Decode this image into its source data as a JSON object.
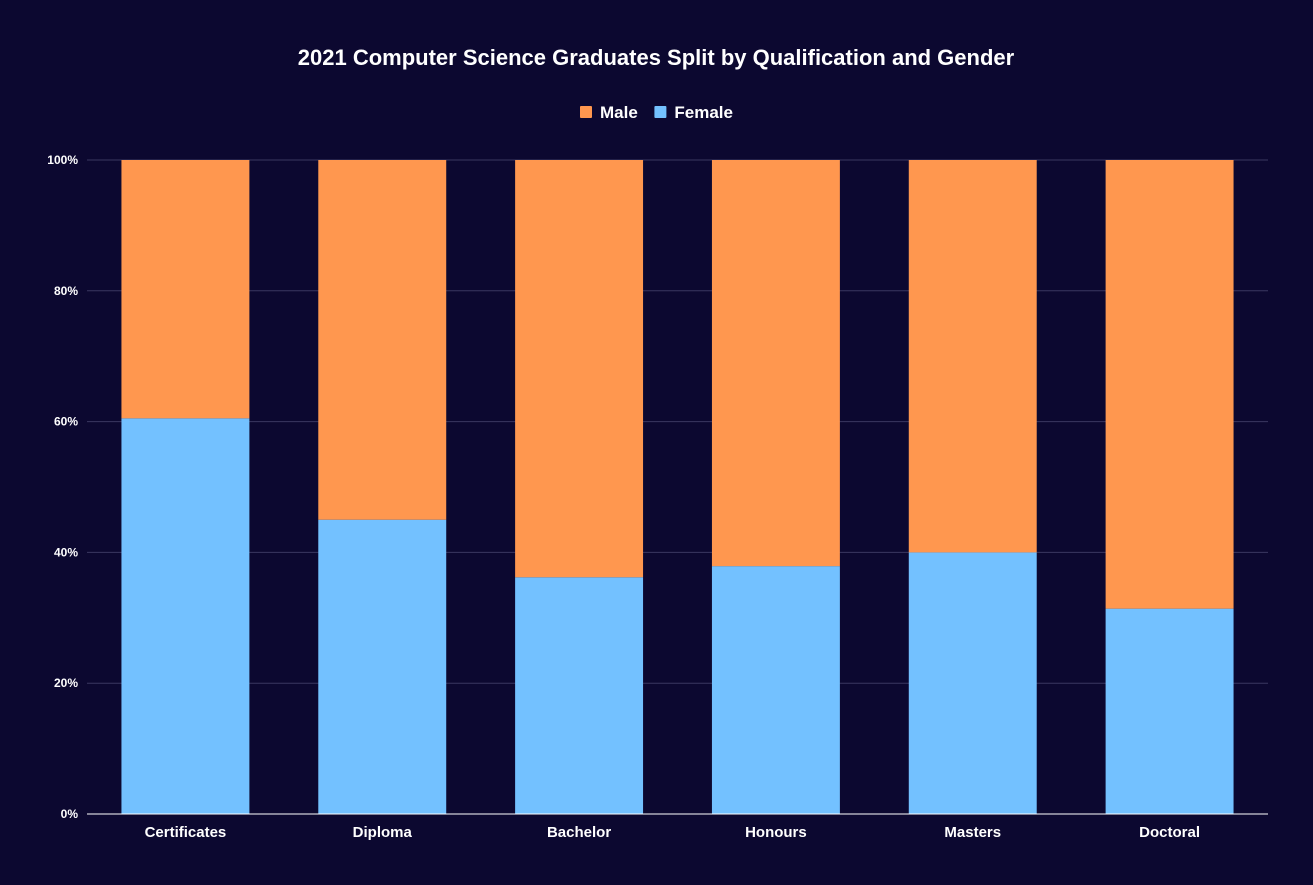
{
  "chart_data": {
    "type": "bar",
    "stacked": "percent",
    "title": "2021 Computer Science Graduates Split by Qualification and Gender",
    "xlabel": "",
    "ylabel": "",
    "categories": [
      "Certificates",
      "Diploma",
      "Bachelor",
      "Honours",
      "Masters",
      "Doctoral"
    ],
    "series": [
      {
        "name": "Female",
        "values": [
          60.5,
          45.0,
          36.2,
          37.9,
          40.0,
          31.4
        ]
      },
      {
        "name": "Male",
        "values": [
          39.5,
          55.0,
          63.8,
          62.1,
          60.0,
          68.6
        ]
      }
    ],
    "legend_order": [
      "Male",
      "Female"
    ],
    "ylim": [
      0,
      100
    ],
    "yticks": [
      {
        "value": 0,
        "label": "0%"
      },
      {
        "value": 20,
        "label": "20%"
      },
      {
        "value": 40,
        "label": "40%"
      },
      {
        "value": 60,
        "label": "60%"
      },
      {
        "value": 80,
        "label": "80%"
      },
      {
        "value": 100,
        "label": "100%"
      }
    ],
    "grid": true,
    "legend_position": "top-center",
    "colors": {
      "background": "#0c0830",
      "Male": "#ff974f",
      "Female": "#73c1ff",
      "text": "#ffffff",
      "grid": "#3a3760",
      "axis": "#ffffff"
    }
  }
}
